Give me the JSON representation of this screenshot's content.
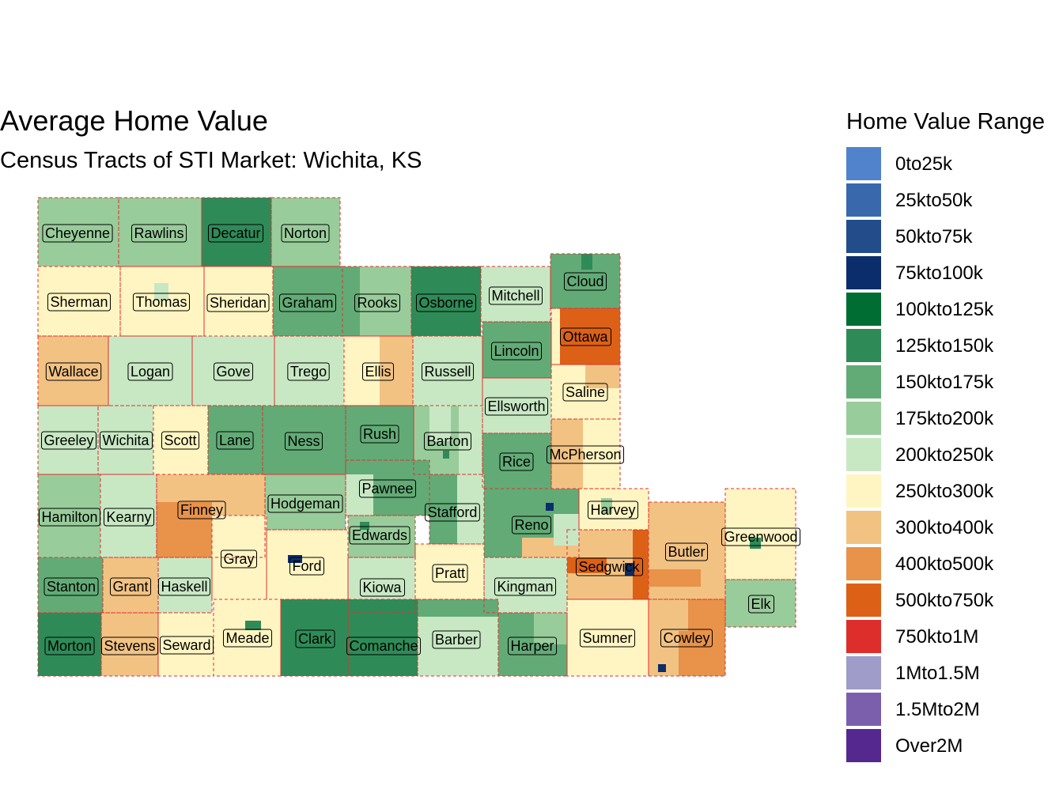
{
  "title": "Average Home Value",
  "subtitle": "Census Tracts of STI Market: Wichita, KS",
  "legend": {
    "title": "Home Value Range",
    "items": [
      {
        "label": "0to25k",
        "color": "#5183cc"
      },
      {
        "label": "25kto50k",
        "color": "#3a68ad"
      },
      {
        "label": "50kto75k",
        "color": "#224c8a"
      },
      {
        "label": "75kto100k",
        "color": "#0b2d6b"
      },
      {
        "label": "100kto125k",
        "color": "#006d32"
      },
      {
        "label": "125kto150k",
        "color": "#2e8b57"
      },
      {
        "label": "150kto175k",
        "color": "#62ab76"
      },
      {
        "label": "175kto200k",
        "color": "#99cc9b"
      },
      {
        "label": "200kto250k",
        "color": "#c8e8c4"
      },
      {
        "label": "250kto300k",
        "color": "#fff5c2"
      },
      {
        "label": "300kto400k",
        "color": "#f2c283"
      },
      {
        "label": "400kto500k",
        "color": "#e8924a"
      },
      {
        "label": "500kto750k",
        "color": "#dc6117"
      },
      {
        "label": "750kto1M",
        "color": "#dd2e2b"
      },
      {
        "label": "1Mto1.5M",
        "color": "#9f9cc9"
      },
      {
        "label": "1.5Mto2M",
        "color": "#7b5fad"
      },
      {
        "label": "Over2M",
        "color": "#55288f"
      }
    ]
  },
  "counties": [
    {
      "name": "Cheyenne",
      "fill": "#99cc9b"
    },
    {
      "name": "Rawlins",
      "fill": "#99cc9b"
    },
    {
      "name": "Decatur",
      "fill": "#2e8b57"
    },
    {
      "name": "Norton",
      "fill": "#99cc9b"
    },
    {
      "name": "Sherman",
      "fill": "#fff5c2"
    },
    {
      "name": "Thomas",
      "fill": "#fff5c2"
    },
    {
      "name": "Sheridan",
      "fill": "#fff5c2"
    },
    {
      "name": "Graham",
      "fill": "#62ab76"
    },
    {
      "name": "Rooks",
      "fill": "#62ab76"
    },
    {
      "name": "Osborne",
      "fill": "#2e8b57"
    },
    {
      "name": "Mitchell",
      "fill": "#c8e8c4"
    },
    {
      "name": "Cloud",
      "fill": "#62ab76"
    },
    {
      "name": "Wallace",
      "fill": "#f2c283"
    },
    {
      "name": "Logan",
      "fill": "#c8e8c4"
    },
    {
      "name": "Gove",
      "fill": "#c8e8c4"
    },
    {
      "name": "Trego",
      "fill": "#c8e8c4"
    },
    {
      "name": "Ellis",
      "fill": "#fff5c2"
    },
    {
      "name": "Russell",
      "fill": "#c8e8c4"
    },
    {
      "name": "Lincoln",
      "fill": "#62ab76"
    },
    {
      "name": "Ottawa",
      "fill": "#fff5c2"
    },
    {
      "name": "Saline",
      "fill": "#fff5c2"
    },
    {
      "name": "Ellsworth",
      "fill": "#c8e8c4"
    },
    {
      "name": "Greeley",
      "fill": "#c8e8c4"
    },
    {
      "name": "Wichita",
      "fill": "#c8e8c4"
    },
    {
      "name": "Scott",
      "fill": "#fff5c2"
    },
    {
      "name": "Lane",
      "fill": "#62ab76"
    },
    {
      "name": "Ness",
      "fill": "#62ab76"
    },
    {
      "name": "Rush",
      "fill": "#62ab76"
    },
    {
      "name": "Barton",
      "fill": "#99cc9b"
    },
    {
      "name": "Rice",
      "fill": "#62ab76"
    },
    {
      "name": "McPherson",
      "fill": "#fff5c2"
    },
    {
      "name": "Hamilton",
      "fill": "#99cc9b"
    },
    {
      "name": "Kearny",
      "fill": "#c8e8c4"
    },
    {
      "name": "Finney",
      "fill": "#f2c283"
    },
    {
      "name": "Hodgeman",
      "fill": "#99cc9b"
    },
    {
      "name": "Pawnee",
      "fill": "#62ab76"
    },
    {
      "name": "Stafford",
      "fill": "#c8e8c4"
    },
    {
      "name": "Reno",
      "fill": "#62ab76"
    },
    {
      "name": "Harvey",
      "fill": "#fff5c2"
    },
    {
      "name": "Butler",
      "fill": "#f2c283"
    },
    {
      "name": "Greenwood",
      "fill": "#fff5c2"
    },
    {
      "name": "Gray",
      "fill": "#fff5c2"
    },
    {
      "name": "Ford",
      "fill": "#fff5c2"
    },
    {
      "name": "Edwards",
      "fill": "#99cc9b"
    },
    {
      "name": "Pratt",
      "fill": "#fff5c2"
    },
    {
      "name": "Kingman",
      "fill": "#c8e8c4"
    },
    {
      "name": "Sedgwick",
      "fill": "#f2c283"
    },
    {
      "name": "Stanton",
      "fill": "#62ab76"
    },
    {
      "name": "Grant",
      "fill": "#f2c283"
    },
    {
      "name": "Haskell",
      "fill": "#c8e8c4"
    },
    {
      "name": "Kiowa",
      "fill": "#c8e8c4"
    },
    {
      "name": "Elk",
      "fill": "#99cc9b"
    },
    {
      "name": "Morton",
      "fill": "#2e8b57"
    },
    {
      "name": "Stevens",
      "fill": "#f2c283"
    },
    {
      "name": "Seward",
      "fill": "#fff5c2"
    },
    {
      "name": "Meade",
      "fill": "#fff5c2"
    },
    {
      "name": "Clark",
      "fill": "#2e8b57"
    },
    {
      "name": "Comanche",
      "fill": "#2e8b57"
    },
    {
      "name": "Barber",
      "fill": "#c8e8c4"
    },
    {
      "name": "Harper",
      "fill": "#62ab76"
    },
    {
      "name": "Sumner",
      "fill": "#fff5c2"
    },
    {
      "name": "Cowley",
      "fill": "#f2c283"
    }
  ]
}
